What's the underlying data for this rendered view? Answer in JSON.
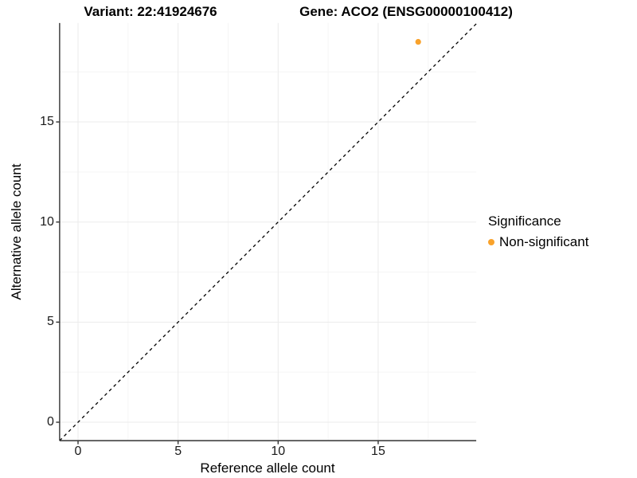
{
  "figure": {
    "title_left": "Variant: 22:41924676",
    "title_right": "Gene: ACO2 (ENSG00000100412)"
  },
  "chart_data": {
    "type": "scatter",
    "xlabel": "Reference allele count",
    "ylabel": "Alternative allele count",
    "x_ticks": [
      0,
      5,
      10,
      15
    ],
    "y_ticks": [
      0,
      5,
      10,
      15
    ],
    "x_minor": [
      2.5,
      7.5,
      12.5,
      17.5
    ],
    "y_minor": [
      2.5,
      7.5,
      12.5,
      17.5
    ],
    "xlim": [
      -0.92,
      19.9
    ],
    "ylim": [
      -0.92,
      19.94
    ],
    "grid": "on",
    "identity_line": {
      "style": "dashed",
      "color": "#000000",
      "from": -0.92,
      "to": 19.9
    },
    "series": [
      {
        "name": "Non-significant",
        "color": "#F9A22B",
        "points": [
          [
            17,
            19
          ]
        ]
      }
    ],
    "legend": {
      "title": "Significance",
      "position": "right",
      "entries": [
        {
          "label": "Non-significant",
          "color": "#F9A22B",
          "marker": "circle"
        }
      ]
    },
    "style": {
      "grid_major_color": "#EBEBEB",
      "grid_minor_color": "#F5F5F5",
      "axis_line_color": "#333333",
      "panel_background": "#FFFFFF"
    }
  }
}
